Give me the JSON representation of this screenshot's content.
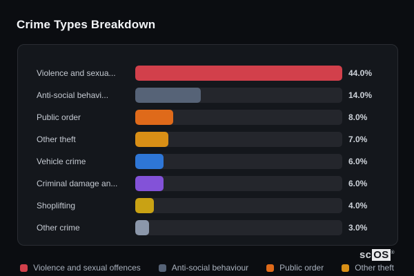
{
  "header": {
    "title": "Crime Types Breakdown"
  },
  "colors": {
    "page_background": "#0b0d11",
    "panel_background": "#14171c",
    "panel_border": "#2a2d33",
    "bar_track": "#24262c",
    "label_text": "#c5cad2",
    "value_text": "#ced3da",
    "legend_text": "#a9b1bd"
  },
  "chart_data": {
    "type": "bar",
    "orientation": "horizontal",
    "title": "Crime Types Breakdown",
    "categories": [
      "Violence and sexua...",
      "Anti-social behavi...",
      "Public order",
      "Other theft",
      "Vehicle crime",
      "Criminal damage an...",
      "Shoplifting",
      "Other crime"
    ],
    "values": [
      44.0,
      14.0,
      8.0,
      7.0,
      6.0,
      6.0,
      4.0,
      3.0
    ],
    "value_labels": [
      "44.0%",
      "14.0%",
      "8.0%",
      "7.0%",
      "6.0%",
      "6.0%",
      "4.0%",
      "3.0%"
    ],
    "bar_colors": [
      "#d2404b",
      "#566377",
      "#df6a1a",
      "#d98f16",
      "#2e76d6",
      "#8352d8",
      "#c9a214",
      "#8b97aa"
    ],
    "xmax": 44.0,
    "grid": false,
    "legend_position": "bottom"
  },
  "legend": {
    "items": [
      {
        "label": "Violence and sexual offences",
        "color": "#d2404b"
      },
      {
        "label": "Anti-social behaviour",
        "color": "#566377"
      },
      {
        "label": "Public order",
        "color": "#df6a1a"
      },
      {
        "label": "Other theft",
        "color": "#d98f16"
      }
    ]
  },
  "branding": {
    "prefix": "sc",
    "suffix": "OS",
    "reg": "®"
  }
}
